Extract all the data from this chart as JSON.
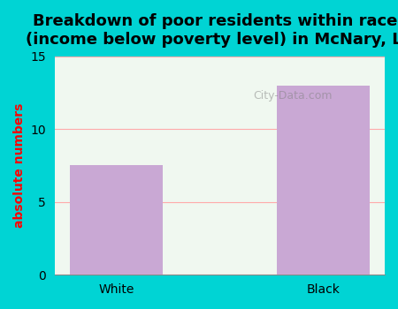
{
  "categories": [
    "White",
    "Black"
  ],
  "values": [
    7.5,
    13.0
  ],
  "bar_color": "#C9A8D4",
  "title": "Breakdown of poor residents within races\n(income below poverty level) in McNary, LA",
  "ylabel": "absolute numbers",
  "ylim": [
    0,
    15
  ],
  "yticks": [
    0,
    5,
    10,
    15
  ],
  "bg_outer": "#00D4D4",
  "bg_plot_top": "#f0f8f0",
  "bg_plot_bottom": "#e8f8e8",
  "grid_color": "#ffaaaa",
  "title_fontsize": 13,
  "ylabel_fontsize": 10,
  "tick_fontsize": 10
}
